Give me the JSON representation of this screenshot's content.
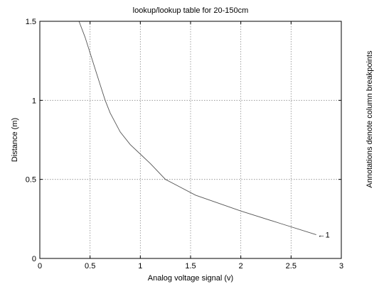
{
  "chart_data": {
    "type": "line",
    "title": "lookup/lookup table for 20-150cm",
    "xlabel": "Analog voltage signal (v)",
    "ylabel": "Distance (m)",
    "side_label": "Annotations denote column breakpoints",
    "xlim": [
      0,
      3
    ],
    "ylim": [
      0,
      1.5
    ],
    "x_ticks": [
      0,
      0.5,
      1,
      1.5,
      2,
      2.5,
      3
    ],
    "x_tick_labels": [
      "0",
      "0.5",
      "1",
      "1.5",
      "2",
      "2.5",
      "3"
    ],
    "y_ticks": [
      0,
      0.5,
      1,
      1.5
    ],
    "y_tick_labels": [
      "0",
      "0.5",
      "1",
      "1.5"
    ],
    "grid": true,
    "grid_style": "dotted",
    "series": [
      {
        "x": [
          0.39,
          0.45,
          0.5,
          0.55,
          0.6,
          0.65,
          0.7,
          0.8,
          0.9,
          1.0,
          1.1,
          1.25,
          1.55,
          2.0,
          2.4,
          2.75
        ],
        "y": [
          1.5,
          1.4,
          1.3,
          1.2,
          1.1,
          1.0,
          0.92,
          0.8,
          0.72,
          0.66,
          0.6,
          0.5,
          0.4,
          0.3,
          0.22,
          0.15
        ],
        "color": "#555555"
      }
    ],
    "annotations": [
      {
        "x": 2.75,
        "y": 0.15,
        "text": "←1"
      }
    ]
  }
}
